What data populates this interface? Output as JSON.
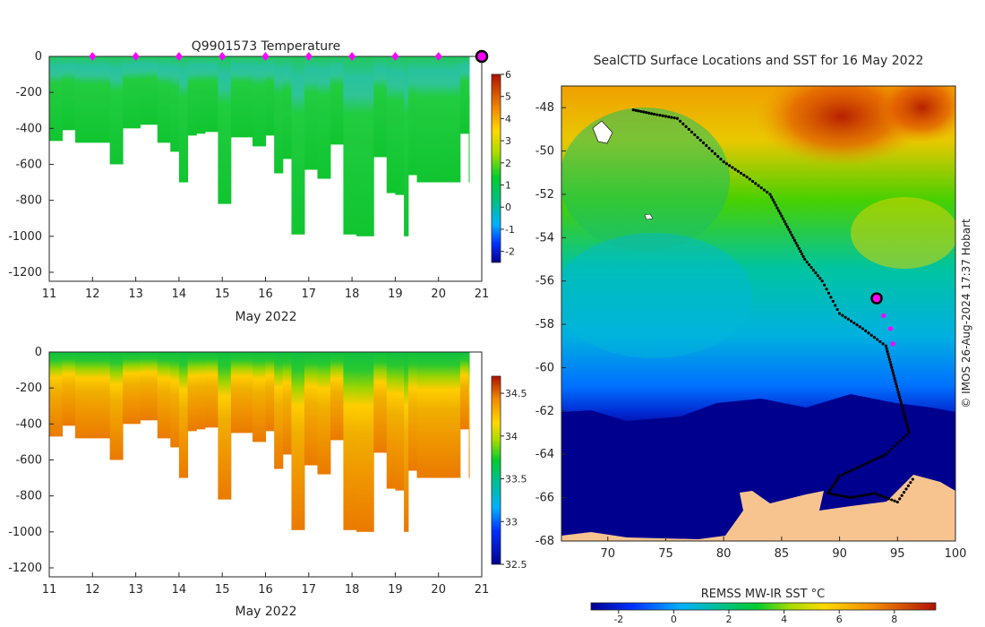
{
  "chart_data": [
    {
      "id": "temperature-section",
      "type": "heatmap",
      "title": "Q9901573  Temperature",
      "xlabel": "May 2022",
      "ylabel": "",
      "xlim": [
        11,
        21
      ],
      "ylim": [
        -1250,
        0
      ],
      "xticks": [
        "11",
        "12",
        "13",
        "14",
        "15",
        "16",
        "17",
        "18",
        "19",
        "20",
        "21"
      ],
      "yticks": [
        "0",
        "-200",
        "-400",
        "-600",
        "-800",
        "-1000",
        "-1200"
      ],
      "profile_days": [
        11.0,
        11.3,
        11.6,
        12.0,
        12.4,
        12.7,
        13.1,
        13.5,
        13.8,
        14.0,
        14.2,
        14.4,
        14.6,
        14.9,
        15.2,
        15.7,
        16.0,
        16.2,
        16.4,
        16.6,
        16.9,
        17.2,
        17.5,
        17.8,
        18.1,
        18.5,
        18.8,
        19.0,
        19.2,
        19.3,
        19.5,
        19.9,
        20.3,
        20.5,
        20.7
      ],
      "profile_max_depth": [
        -470,
        -410,
        -480,
        -480,
        -600,
        -400,
        -380,
        -480,
        -530,
        -700,
        -440,
        -430,
        -420,
        -820,
        -450,
        -500,
        -440,
        -650,
        -570,
        -990,
        -630,
        -680,
        -490,
        -990,
        -1000,
        -560,
        -760,
        -770,
        -1000,
        -660,
        -700,
        -700,
        -700,
        -430,
        -700
      ],
      "surface_markers_x": [
        12,
        13,
        14,
        15,
        16,
        17,
        18,
        19,
        20
      ],
      "current_marker_x": 21,
      "colorbar": {
        "ticks": [
          "6",
          "5",
          "4",
          "3",
          "2",
          "1",
          "0",
          "-1",
          "-2"
        ],
        "min": -2.5,
        "max": 6
      }
    },
    {
      "id": "salinity-section",
      "type": "heatmap",
      "title": "",
      "xlabel": "May 2022",
      "xlim": [
        11,
        21
      ],
      "ylim": [
        -1250,
        0
      ],
      "xticks": [
        "11",
        "12",
        "13",
        "14",
        "15",
        "16",
        "17",
        "18",
        "19",
        "20",
        "21"
      ],
      "yticks": [
        "0",
        "-200",
        "-400",
        "-600",
        "-800",
        "-1000",
        "-1200"
      ],
      "colorbar": {
        "ticks": [
          "34.5",
          "34",
          "33.5",
          "33",
          "32.5"
        ],
        "min": 32.5,
        "max": 34.7
      }
    },
    {
      "id": "sst-map",
      "type": "heatmap",
      "title": "SealCTD Surface Locations and SST for 16 May 2022",
      "xlim": [
        66,
        100
      ],
      "ylim": [
        -68,
        -47
      ],
      "xticks": [
        "70",
        "75",
        "80",
        "85",
        "90",
        "95",
        "100"
      ],
      "yticks": [
        "-48",
        "-50",
        "-52",
        "-54",
        "-56",
        "-58",
        "-60",
        "-62",
        "-64",
        "-66",
        "-68"
      ],
      "colorbar": {
        "label": "REMSS MW-IR SST °C",
        "ticks": [
          "-2",
          "0",
          "2",
          "4",
          "6",
          "8"
        ],
        "min": -3,
        "max": 9.5
      },
      "track": [
        [
          72.2,
          -48.1
        ],
        [
          74,
          -48.3
        ],
        [
          76,
          -48.5
        ],
        [
          78,
          -49.5
        ],
        [
          80,
          -50.5
        ],
        [
          82,
          -51.2
        ],
        [
          84,
          -52
        ],
        [
          85,
          -53
        ],
        [
          86,
          -54
        ],
        [
          87,
          -55
        ],
        [
          88.5,
          -56
        ],
        [
          90,
          -57.5
        ],
        [
          92,
          -58.2
        ],
        [
          94,
          -59
        ],
        [
          94.5,
          -60
        ],
        [
          95,
          -61
        ],
        [
          95.5,
          -62
        ],
        [
          96,
          -63
        ],
        [
          94,
          -64
        ],
        [
          92,
          -64.5
        ],
        [
          90,
          -65
        ],
        [
          89,
          -65.8
        ],
        [
          91,
          -66
        ],
        [
          93,
          -65.8
        ],
        [
          95,
          -66.2
        ],
        [
          96.5,
          -65
        ]
      ],
      "current_position": [
        93.2,
        -56.8
      ],
      "recent_track": [
        [
          93.2,
          -56.8
        ],
        [
          93.8,
          -57.6
        ],
        [
          94.4,
          -58.2
        ],
        [
          94.6,
          -58.9
        ]
      ],
      "annotation": "© IMOS 26-Aug-2024 17:37 Hobart"
    }
  ],
  "colors": {
    "marker": "#ff00ff",
    "land": "#f7c490",
    "track": "#000000"
  }
}
